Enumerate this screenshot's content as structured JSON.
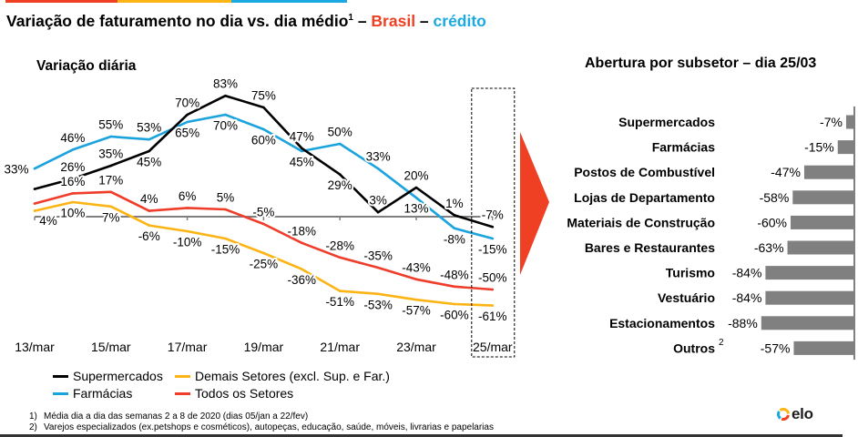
{
  "top_bar": {
    "segments": [
      {
        "color": "#ef4023"
      },
      {
        "color": "#fdb515"
      },
      {
        "color": "#1aa9e1"
      }
    ]
  },
  "header": {
    "title": "Variação de faturamento no dia vs. dia médio",
    "title_footnote_mark": "1",
    "separator_1": " – ",
    "region": "Brasil",
    "separator_2": " – ",
    "product": "crédito",
    "region_color": "#ef4023",
    "product_color": "#1aa9e1"
  },
  "chart_data": [
    {
      "type": "line",
      "title": "Variação diária",
      "xlabel": "",
      "ylabel": "",
      "unit": "%",
      "baseline": 0,
      "grid": false,
      "x": [
        "13/mar",
        "14/mar",
        "15/mar",
        "16/mar",
        "17/mar",
        "18/mar",
        "19/mar",
        "20/mar",
        "21/mar",
        "22/mar",
        "23/mar",
        "24/mar",
        "25/mar"
      ],
      "x_tick_labels": [
        "13/mar",
        "15/mar",
        "17/mar",
        "19/mar",
        "21/mar",
        "23/mar",
        "25/mar"
      ],
      "x_tick_step": 2,
      "highlight_category": "25/mar",
      "legend_position": "bottom-left",
      "series": [
        {
          "name": "Supermercados",
          "color": "#000000",
          "values": [
            19,
            26,
            35,
            45,
            70,
            83,
            75,
            47,
            29,
            3,
            20,
            1,
            -7
          ],
          "labels": [
            null,
            "26%",
            "35%",
            "45%",
            "70%",
            "83%",
            "75%",
            "47%",
            "29%",
            "3%",
            "20%",
            "1%",
            "-7%"
          ],
          "label_pos": [
            "above",
            "above",
            "above",
            "below",
            "above",
            "above",
            "above",
            "above",
            "below",
            "above",
            "above",
            "above",
            "above"
          ]
        },
        {
          "name": "Farmácias",
          "color": "#1aa3dc",
          "values": [
            33,
            46,
            55,
            53,
            65,
            70,
            60,
            45,
            50,
            33,
            13,
            -8,
            -15
          ],
          "labels": [
            "33%",
            "46%",
            "55%",
            "53%",
            "65%",
            "70%",
            "60%",
            "45%",
            "50%",
            "33%",
            "13%",
            "-8%",
            "-15%"
          ],
          "label_pos": [
            "left",
            "above",
            "above",
            "above",
            "below",
            "below",
            "below",
            "below",
            "above",
            "above",
            "below",
            "below",
            "below"
          ]
        },
        {
          "name": "Demais Setores (excl. Sup. e Far.)",
          "color": "#fcb415",
          "values": [
            4,
            10,
            7,
            -6,
            -10,
            -15,
            -25,
            -36,
            -51,
            -53,
            -57,
            -60,
            -61
          ],
          "labels": [
            "4%",
            "10%",
            "7%",
            "-6%",
            "-10%",
            "-15%",
            "-25%",
            "-36%",
            "-51%",
            "-53%",
            "-57%",
            "-60%",
            "-61%"
          ],
          "label_pos": [
            "below-right",
            "below",
            "below",
            "below",
            "below",
            "below",
            "below",
            "below",
            "below",
            "below",
            "below",
            "below",
            "below"
          ]
        },
        {
          "name": "Todos os Setores",
          "color": "#ee3d2a",
          "values": [
            9,
            16,
            17,
            4,
            6,
            5,
            -5,
            -18,
            -28,
            -35,
            -43,
            -48,
            -50
          ],
          "labels": [
            null,
            "16%",
            "17%",
            "4%",
            "6%",
            "5%",
            "-5%",
            "-18%",
            "-28%",
            "-35%",
            "-43%",
            "-48%",
            "-50%"
          ],
          "label_pos": [
            "above",
            "above",
            "above",
            "above",
            "above",
            "above",
            "above",
            "above",
            "above",
            "above",
            "above",
            "above",
            "above"
          ]
        }
      ]
    },
    {
      "type": "bar",
      "orientation": "horizontal",
      "title": "Abertura por subsetor – dia 25/03",
      "categories": [
        "Supermercados",
        "Farmácias",
        "Postos de Combustível",
        "Lojas de Departamento",
        "Materiais de Construção",
        "Bares e Restaurantes",
        "Turismo",
        "Vestuário",
        "Estacionamentos",
        "Outros"
      ],
      "category_footnote_marks": [
        "",
        "",
        "",
        "",
        "",
        "",
        "",
        "",
        "",
        "2"
      ],
      "values": [
        -7,
        -15,
        -47,
        -58,
        -60,
        -63,
        -84,
        -84,
        -88,
        -57
      ],
      "value_labels": [
        "-7%",
        "-15%",
        "-47%",
        "-58%",
        "-60%",
        "-63%",
        "-84%",
        "-84%",
        "-88%",
        "-57%"
      ],
      "color": "#808080",
      "xlabel": "",
      "ylabel": ""
    }
  ],
  "annotations": {
    "arrow_color": "#ef4023",
    "arrow_icon": "arrow-right-icon"
  },
  "footnotes": [
    {
      "mark": "1)",
      "text": "Média dia a dia das semanas 2 a 8 de 2020 (dias 05/jan a 22/fev)"
    },
    {
      "mark": "2)",
      "text": "Varejos especializados (ex.petshops e cosméticos), autopeças, educação, saúde, móveis, livrarias e papelarias"
    }
  ],
  "logo": {
    "text": "elo",
    "ring_colors": [
      "#1aa9e1",
      "#fdb515",
      "#ef4023"
    ]
  }
}
